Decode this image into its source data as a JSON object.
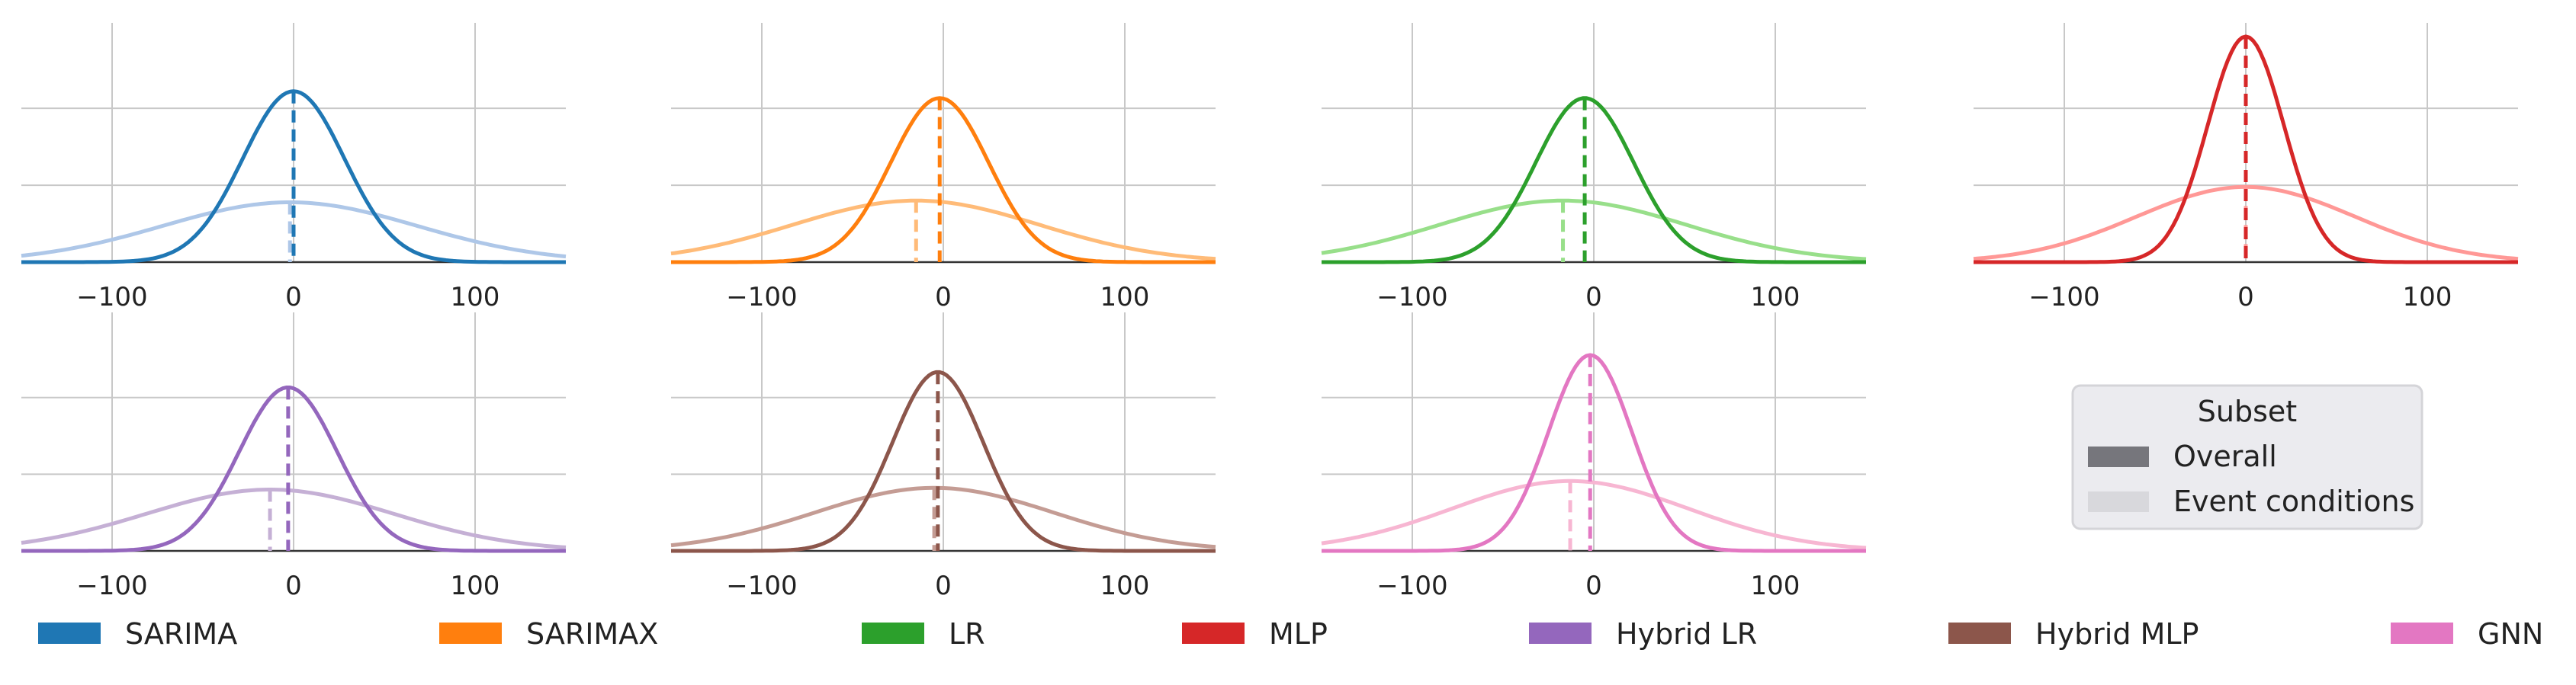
{
  "chart_data": {
    "type": "line",
    "description_kind": "density curves of prediction error per model, overall vs event conditions",
    "xlim": [
      -150,
      150
    ],
    "xticks": [
      -100,
      0,
      100
    ],
    "xtick_labels": [
      "−100",
      "0",
      "100"
    ],
    "ylim": [
      0,
      1.4
    ],
    "grid": true,
    "panels": [
      {
        "model": "SARIMA",
        "color": "#1f77b4",
        "light": "#aec7e8",
        "overall": {
          "mean": 0,
          "peak": 1.0,
          "sigma": 28
        },
        "event": {
          "mean": -2,
          "peak": 0.35,
          "sigma": 70
        }
      },
      {
        "model": "SARIMAX",
        "color": "#ff7f0e",
        "light": "#ffbb78",
        "overall": {
          "mean": -2,
          "peak": 0.96,
          "sigma": 27
        },
        "event": {
          "mean": -15,
          "peak": 0.36,
          "sigma": 68
        }
      },
      {
        "model": "LR",
        "color": "#2ca02c",
        "light": "#98df8a",
        "overall": {
          "mean": -5,
          "peak": 0.96,
          "sigma": 27
        },
        "event": {
          "mean": -17,
          "peak": 0.36,
          "sigma": 68
        }
      },
      {
        "model": "MLP",
        "color": "#d62728",
        "light": "#ff9896",
        "overall": {
          "mean": 0,
          "peak": 1.32,
          "sigma": 21
        },
        "event": {
          "mean": 0,
          "peak": 0.44,
          "sigma": 60
        }
      },
      {
        "model": "Hybrid LR",
        "color": "#9467bd",
        "light": "#c5b0d5",
        "overall": {
          "mean": -3,
          "peak": 0.96,
          "sigma": 27
        },
        "event": {
          "mean": -13,
          "peak": 0.36,
          "sigma": 68
        }
      },
      {
        "model": "Hybrid MLP",
        "color": "#8c564b",
        "light": "#c49c94",
        "overall": {
          "mean": -3,
          "peak": 1.05,
          "sigma": 25
        },
        "event": {
          "mean": -5,
          "peak": 0.37,
          "sigma": 66
        }
      },
      {
        "model": "GNN",
        "color": "#e377c2",
        "light": "#f7b6d2",
        "overall": {
          "mean": -2,
          "peak": 1.15,
          "sigma": 23
        },
        "event": {
          "mean": -13,
          "peak": 0.41,
          "sigma": 65
        }
      }
    ],
    "subset_legend": {
      "title": "Subset",
      "entries": [
        {
          "label": "Overall",
          "color": "#76767c"
        },
        {
          "label": "Event conditions",
          "color": "#d8d8dc"
        }
      ]
    },
    "model_legend": [
      {
        "label": "SARIMA",
        "color": "#1f77b4"
      },
      {
        "label": "SARIMAX",
        "color": "#ff7f0e"
      },
      {
        "label": "LR",
        "color": "#2ca02c"
      },
      {
        "label": "MLP",
        "color": "#d62728"
      },
      {
        "label": "Hybrid LR",
        "color": "#9467bd"
      },
      {
        "label": "Hybrid MLP",
        "color": "#8c564b"
      },
      {
        "label": "GNN",
        "color": "#e377c2"
      }
    ]
  }
}
